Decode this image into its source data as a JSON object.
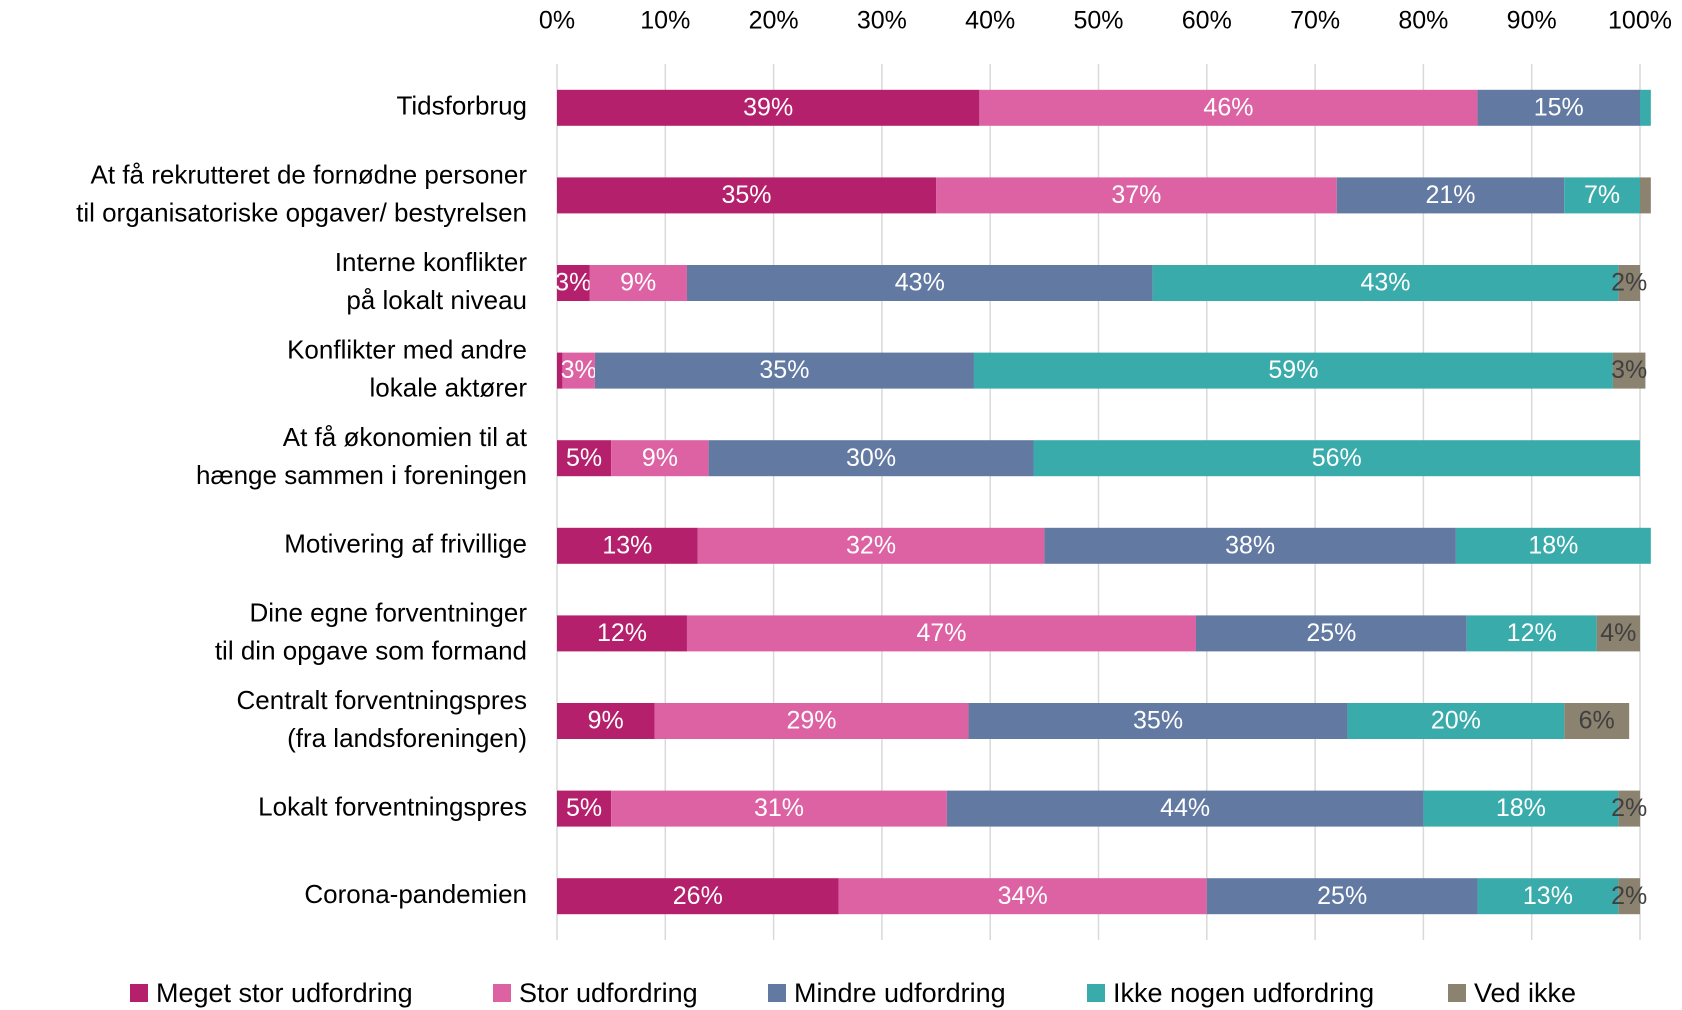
{
  "chart_data": {
    "type": "stacked-barh",
    "categories": [
      [
        "Tidsforbrug"
      ],
      [
        "At få rekrutteret de fornødne personer",
        "til organisatoriske opgaver/ bestyrelsen"
      ],
      [
        "Interne konflikter",
        "på lokalt niveau"
      ],
      [
        "Konflikter med andre",
        "lokale aktører"
      ],
      [
        "At få økonomien til at",
        "hænge sammen i foreningen"
      ],
      [
        "Motivering af frivillige"
      ],
      [
        "Dine egne forventninger",
        "til din opgave som formand"
      ],
      [
        "Centralt forventningspres",
        "(fra landsforeningen)"
      ],
      [
        "Lokalt forventningspres"
      ],
      [
        "Corona-pandemien"
      ]
    ],
    "series": [
      {
        "name": "Meget stor udfordring",
        "color": "#b5206c",
        "values": [
          39,
          35,
          3,
          0.5,
          5,
          13,
          12,
          9,
          5,
          26
        ],
        "value_labels": [
          "39%",
          "35%",
          "3%",
          null,
          "5%",
          "13%",
          "12%",
          "9%",
          "5%",
          "26%"
        ]
      },
      {
        "name": "Stor udfordring",
        "color": "#dc62a4",
        "values": [
          46,
          37,
          9,
          3,
          9,
          32,
          47,
          29,
          31,
          34
        ],
        "value_labels": [
          "46%",
          "37%",
          "9%",
          "3%",
          "9%",
          "32%",
          "47%",
          "29%",
          "31%",
          "34%"
        ]
      },
      {
        "name": "Mindre udfordring",
        "color": "#6279a2",
        "values": [
          15,
          21,
          43,
          35,
          30,
          38,
          25,
          35,
          44,
          25
        ],
        "value_labels": [
          "15%",
          "21%",
          "43%",
          "35%",
          "30%",
          "38%",
          "25%",
          "35%",
          "44%",
          "25%"
        ]
      },
      {
        "name": "Ikke nogen udfordring",
        "color": "#3aabab",
        "values": [
          1,
          7,
          43,
          59,
          56,
          18,
          12,
          20,
          18,
          13
        ],
        "value_labels": [
          null,
          "7%",
          "43%",
          "59%",
          "56%",
          "18%",
          "12%",
          "20%",
          "18%",
          "13%"
        ]
      },
      {
        "name": "Ved ikke",
        "color": "#8b8270",
        "values": [
          0,
          1,
          2,
          3,
          0,
          0,
          4,
          6,
          2,
          2
        ],
        "value_labels": [
          null,
          null,
          "2%",
          "3%",
          null,
          null,
          "4%",
          "6%",
          "2%",
          "2%"
        ]
      }
    ],
    "xlim": [
      0,
      100
    ],
    "xticks": [
      {
        "value": 0,
        "label": "0%"
      },
      {
        "value": 10,
        "label": "10%"
      },
      {
        "value": 20,
        "label": "20%"
      },
      {
        "value": 30,
        "label": "30%"
      },
      {
        "value": 40,
        "label": "40%"
      },
      {
        "value": 50,
        "label": "50%"
      },
      {
        "value": 60,
        "label": "60%"
      },
      {
        "value": 70,
        "label": "70%"
      },
      {
        "value": 80,
        "label": "80%"
      },
      {
        "value": 90,
        "label": "90%"
      },
      {
        "value": 100,
        "label": "100%"
      }
    ],
    "grid": true,
    "legend": "bottom"
  }
}
